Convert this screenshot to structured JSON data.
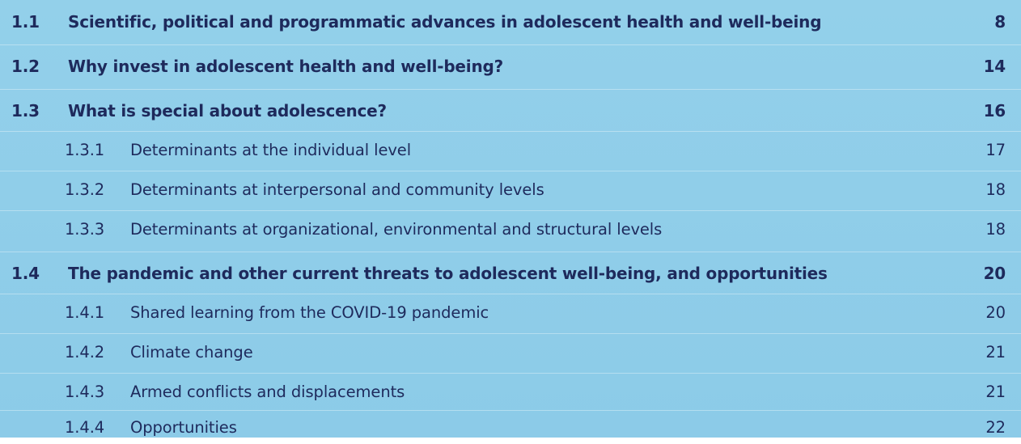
{
  "entries": [
    {
      "number": "1.1",
      "title": "Scientific, political and programmatic advances in adolescent health and well-being",
      "page": "8",
      "level": 1
    },
    {
      "number": "1.2",
      "title": "Why invest in adolescent health and well-being?",
      "page": "14",
      "level": 1
    },
    {
      "number": "1.3",
      "title": "What is special about adolescence?",
      "page": "16",
      "level": 1
    },
    {
      "number": "1.3.1",
      "title": "Determinants at the individual level",
      "page": "17",
      "level": 2
    },
    {
      "number": "1.3.2",
      "title": "Determinants at interpersonal and community levels",
      "page": "18",
      "level": 2
    },
    {
      "number": "1.3.3",
      "title": "Determinants at organizational, environmental and structural levels",
      "page": "18",
      "level": 2
    },
    {
      "number": "1.4",
      "title": "The pandemic and other current threats to adolescent well-being, and opportunities",
      "page": "20",
      "level": 1
    },
    {
      "number": "1.4.1",
      "title": "Shared learning from the COVID-19 pandemic",
      "page": "20",
      "level": 2
    },
    {
      "number": "1.4.2",
      "title": "Climate change",
      "page": "21",
      "level": 2
    },
    {
      "number": "1.4.3",
      "title": "Armed conflicts and displacements",
      "page": "21",
      "level": 2
    },
    {
      "number": "1.4.4",
      "title": "Opportunities",
      "page": "22",
      "level": 2
    }
  ]
}
